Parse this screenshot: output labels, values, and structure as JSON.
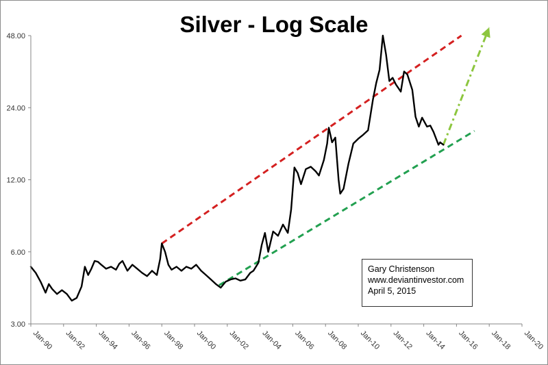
{
  "chart_data": {
    "type": "line",
    "title": "Silver - Log Scale",
    "yscale": "log",
    "xlabel": "",
    "ylabel": "",
    "ylim": [
      3.0,
      48.0
    ],
    "xlim": [
      1990.0,
      2020.0
    ],
    "y_ticks": [
      {
        "value": 3.0,
        "label": "3.00"
      },
      {
        "value": 6.0,
        "label": "6.00"
      },
      {
        "value": 12.0,
        "label": "12.00"
      },
      {
        "value": 24.0,
        "label": "24.00"
      },
      {
        "value": 48.0,
        "label": "48.00"
      }
    ],
    "x_ticks": [
      {
        "value": 1990,
        "label": "Jan-90"
      },
      {
        "value": 1992,
        "label": "Jan-92"
      },
      {
        "value": 1994,
        "label": "Jan-94"
      },
      {
        "value": 1996,
        "label": "Jan-96"
      },
      {
        "value": 1998,
        "label": "Jan-98"
      },
      {
        "value": 2000,
        "label": "Jan-00"
      },
      {
        "value": 2002,
        "label": "Jan-02"
      },
      {
        "value": 2004,
        "label": "Jan-04"
      },
      {
        "value": 2006,
        "label": "Jan-06"
      },
      {
        "value": 2008,
        "label": "Jan-08"
      },
      {
        "value": 2010,
        "label": "Jan-10"
      },
      {
        "value": 2012,
        "label": "Jan-12"
      },
      {
        "value": 2014,
        "label": "Jan-14"
      },
      {
        "value": 2016,
        "label": "Jan-16"
      },
      {
        "value": 2018,
        "label": "Jan-18"
      },
      {
        "value": 2020,
        "label": "Jan-20"
      }
    ],
    "series": [
      {
        "name": "Silver price",
        "color": "#000000",
        "x": [
          1990.0,
          1990.3,
          1990.6,
          1990.9,
          1991.1,
          1991.3,
          1991.6,
          1991.9,
          1992.2,
          1992.5,
          1992.8,
          1993.1,
          1993.3,
          1993.5,
          1993.7,
          1993.9,
          1994.1,
          1994.3,
          1994.6,
          1994.9,
          1995.2,
          1995.4,
          1995.6,
          1995.9,
          1996.2,
          1996.5,
          1996.8,
          1997.1,
          1997.4,
          1997.7,
          1997.9,
          1998.0,
          1998.2,
          1998.4,
          1998.6,
          1998.9,
          1999.2,
          1999.5,
          1999.8,
          2000.1,
          2000.4,
          2000.7,
          2001.0,
          2001.3,
          2001.6,
          2001.9,
          2002.2,
          2002.5,
          2002.8,
          2003.1,
          2003.4,
          2003.6,
          2003.9,
          2004.1,
          2004.3,
          2004.5,
          2004.8,
          2005.1,
          2005.4,
          2005.7,
          2005.9,
          2006.1,
          2006.3,
          2006.5,
          2006.8,
          2007.1,
          2007.4,
          2007.6,
          2007.9,
          2008.1,
          2008.2,
          2008.4,
          2008.6,
          2008.8,
          2008.9,
          2009.1,
          2009.4,
          2009.7,
          2010.0,
          2010.3,
          2010.6,
          2010.9,
          2011.1,
          2011.3,
          2011.5,
          2011.7,
          2011.9,
          2012.1,
          2012.3,
          2012.6,
          2012.8,
          2013.0,
          2013.3,
          2013.5,
          2013.7,
          2013.9,
          2014.2,
          2014.4,
          2014.6,
          2014.9,
          2015.0,
          2015.2
        ],
        "values": [
          5.2,
          4.9,
          4.5,
          4.05,
          4.4,
          4.2,
          4.0,
          4.15,
          4.0,
          3.75,
          3.85,
          4.3,
          5.2,
          4.8,
          5.1,
          5.5,
          5.45,
          5.3,
          5.1,
          5.2,
          5.05,
          5.35,
          5.5,
          5.0,
          5.3,
          5.1,
          4.9,
          4.75,
          5.0,
          4.8,
          5.6,
          6.5,
          6.0,
          5.3,
          5.05,
          5.2,
          5.0,
          5.2,
          5.1,
          5.3,
          5.0,
          4.8,
          4.6,
          4.4,
          4.25,
          4.5,
          4.6,
          4.65,
          4.55,
          4.6,
          4.9,
          5.0,
          5.4,
          6.4,
          7.2,
          6.0,
          7.3,
          7.0,
          7.8,
          7.2,
          9.0,
          13.5,
          12.8,
          11.5,
          13.3,
          13.6,
          13.0,
          12.5,
          14.5,
          17.0,
          19.8,
          17.2,
          18.0,
          12.0,
          10.5,
          11.0,
          14.0,
          17.0,
          17.8,
          18.5,
          19.3,
          26.0,
          30.5,
          34.5,
          48.0,
          40.0,
          31.0,
          32.0,
          30.0,
          28.0,
          34.0,
          33.0,
          28.5,
          22.0,
          20.0,
          21.8,
          20.0,
          20.2,
          19.0,
          16.8,
          17.2,
          16.8
        ]
      }
    ],
    "trendlines": [
      {
        "name": "upper channel",
        "color": "#d42020",
        "style": "dashed",
        "x": [
          1998.0,
          2016.3
        ],
        "values": [
          6.5,
          48.0
        ]
      },
      {
        "name": "lower channel",
        "color": "#22a050",
        "style": "dashed",
        "x": [
          2001.5,
          2017.1
        ],
        "values": [
          4.35,
          19.2
        ]
      },
      {
        "name": "projection",
        "color": "#8dc63f",
        "style": "dash-dot",
        "x": [
          2015.2,
          2018.0
        ],
        "values": [
          16.8,
          52.0
        ]
      }
    ],
    "annotation": {
      "lines": [
        "Gary Christenson",
        "www.deviantinvestor.com",
        "April 5, 2015"
      ]
    }
  }
}
